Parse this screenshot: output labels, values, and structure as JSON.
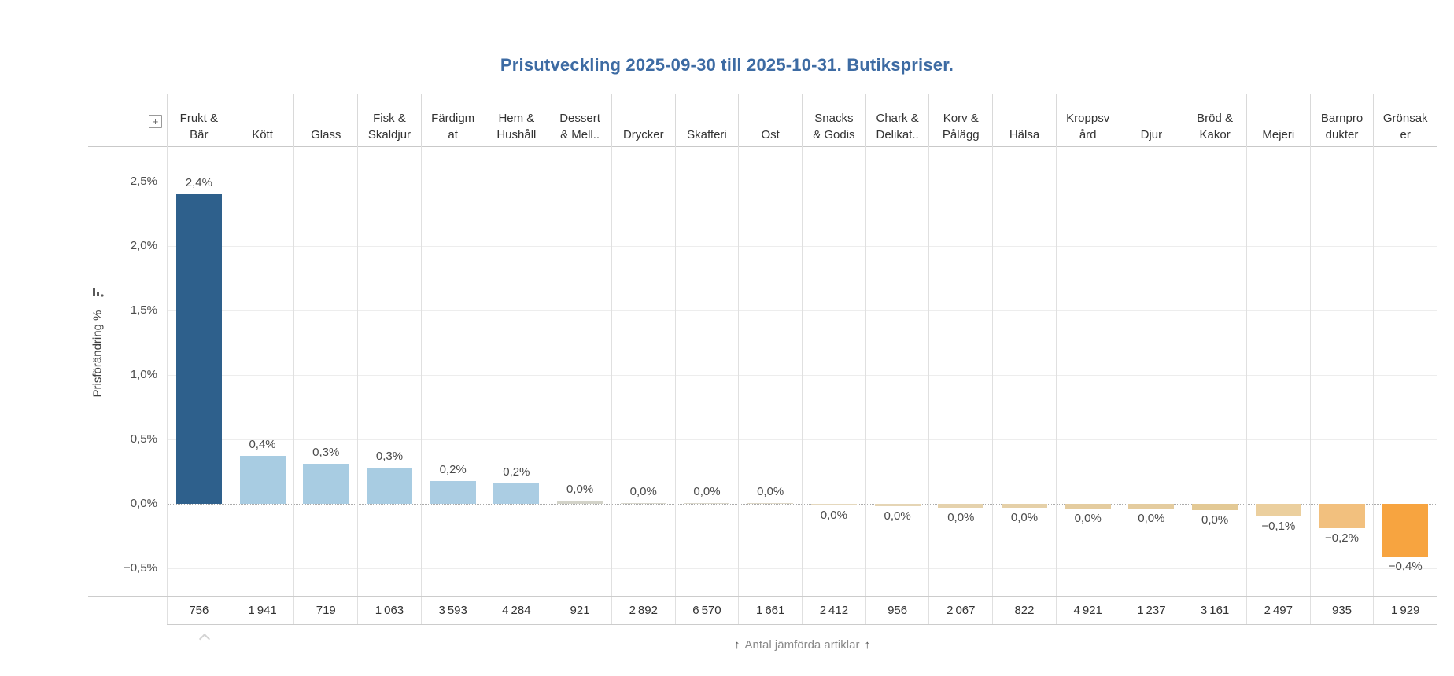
{
  "controls": {
    "expand_icon": "+"
  },
  "chart_data": {
    "type": "bar",
    "title": "Prisutveckling 2025-09-30 till 2025-10-31. Butikspriser.",
    "ylabel": "Prisförändring %",
    "xlabel": "",
    "footer": {
      "arrow": "↑",
      "label": "Antal jämförda artiklar"
    },
    "legend": "none",
    "grid": true,
    "ylim": [
      -0.8,
      2.75
    ],
    "y_axis": {
      "ticks": [
        {
          "label": "2,5%",
          "value": 2.5
        },
        {
          "label": "2,0%",
          "value": 2.0
        },
        {
          "label": "1,5%",
          "value": 1.5
        },
        {
          "label": "1,0%",
          "value": 1.0
        },
        {
          "label": "0,5%",
          "value": 0.5
        },
        {
          "label": "0,0%",
          "value": 0.0
        },
        {
          "label": "−0,5%",
          "value": -0.5
        }
      ]
    },
    "categories": [
      "Frukt & Bär",
      "Kött",
      "Glass",
      "Fisk & Skaldjur",
      "Färdigmat",
      "Hem & Hushåll",
      "Dessert & Mell..",
      "Drycker",
      "Skafferi",
      "Ost",
      "Snacks & Godis",
      "Chark & Delikat..",
      "Korv & Pålägg",
      "Hälsa",
      "Kroppsvård",
      "Djur",
      "Bröd & Kakor",
      "Mejeri",
      "Barnprodukter",
      "Grönsaker"
    ],
    "series": [
      {
        "name": "Prisförändring %",
        "values": [
          2.4,
          0.4,
          0.3,
          0.3,
          0.2,
          0.2,
          0.0,
          0.0,
          0.0,
          0.0,
          0.0,
          0.0,
          0.0,
          0.0,
          0.0,
          0.0,
          0.0,
          -0.1,
          -0.2,
          -0.4
        ]
      },
      {
        "name": "Antal jämförda artiklar",
        "values": [
          756,
          1941,
          719,
          1063,
          3593,
          4284,
          921,
          2892,
          6570,
          1661,
          2412,
          956,
          2067,
          822,
          4921,
          1237,
          3161,
          2497,
          935,
          1929
        ]
      }
    ],
    "columns": [
      {
        "label": "Frukt & Bär",
        "header_lines": [
          "Frukt &",
          "Bär"
        ],
        "value_label": "2,4%",
        "value_est": 2.4,
        "color": "#2e608c",
        "count": "756"
      },
      {
        "label": "Kött",
        "header_lines": [
          "Kött"
        ],
        "value_label": "0,4%",
        "value_est": 0.37,
        "color": "#a8cce2",
        "count": "1 941"
      },
      {
        "label": "Glass",
        "header_lines": [
          "Glass"
        ],
        "value_label": "0,3%",
        "value_est": 0.31,
        "color": "#a8cce2",
        "count": "719"
      },
      {
        "label": "Fisk & Skaldjur",
        "header_lines": [
          "Fisk &",
          "Skaldjur"
        ],
        "value_label": "0,3%",
        "value_est": 0.28,
        "color": "#a8cce2",
        "count": "1 063"
      },
      {
        "label": "Färdigmat",
        "header_lines": [
          "Färdigm",
          "at"
        ],
        "value_label": "0,2%",
        "value_est": 0.175,
        "color": "#abcde3",
        "count": "3 593"
      },
      {
        "label": "Hem & Hushåll",
        "header_lines": [
          "Hem &",
          "Hushåll"
        ],
        "value_label": "0,2%",
        "value_est": 0.16,
        "color": "#abcde3",
        "count": "4 284"
      },
      {
        "label": "Dessert & Mell..",
        "header_lines": [
          "Dessert",
          "& Mell.."
        ],
        "value_label": "0,0%",
        "value_est": 0.022,
        "color": "#d3d3c9",
        "count": "921"
      },
      {
        "label": "Drycker",
        "header_lines": [
          "Drycker"
        ],
        "value_label": "0,0%",
        "value_est": 0.008,
        "color": "#d6d5cb",
        "count": "2 892"
      },
      {
        "label": "Skafferi",
        "header_lines": [
          "Skafferi"
        ],
        "value_label": "0,0%",
        "value_est": 0.007,
        "color": "#d9d6ca",
        "count": "6 570"
      },
      {
        "label": "Ost",
        "header_lines": [
          "Ost"
        ],
        "value_label": "0,0%",
        "value_est": 0.006,
        "color": "#dcd6c6",
        "count": "1 661"
      },
      {
        "label": "Snacks & Godis",
        "header_lines": [
          "Snacks",
          "& Godis"
        ],
        "value_label": "0,0%",
        "value_est": -0.015,
        "color": "#e5d8bd",
        "count": "2 412"
      },
      {
        "label": "Chark & Delikat..",
        "header_lines": [
          "Chark &",
          "Delikat.."
        ],
        "value_label": "0,0%",
        "value_est": -0.02,
        "color": "#e5d5b5",
        "count": "956"
      },
      {
        "label": "Korv & Pålägg",
        "header_lines": [
          "Korv &",
          "Pålägg"
        ],
        "value_label": "0,0%",
        "value_est": -0.028,
        "color": "#e5d2ad",
        "count": "2 067"
      },
      {
        "label": "Hälsa",
        "header_lines": [
          "Hälsa"
        ],
        "value_label": "0,0%",
        "value_est": -0.03,
        "color": "#e5d0a8",
        "count": "822"
      },
      {
        "label": "Kroppsvård",
        "header_lines": [
          "Kroppsv",
          "ård"
        ],
        "value_label": "0,0%",
        "value_est": -0.036,
        "color": "#e4cc9f",
        "count": "4 921"
      },
      {
        "label": "Djur",
        "header_lines": [
          "Djur"
        ],
        "value_label": "0,0%",
        "value_est": -0.036,
        "color": "#e4cc9f",
        "count": "1 237"
      },
      {
        "label": "Bröd & Kakor",
        "header_lines": [
          "Bröd &",
          "Kakor"
        ],
        "value_label": "0,0%",
        "value_est": -0.046,
        "color": "#e3c995",
        "count": "3 161"
      },
      {
        "label": "Mejeri",
        "header_lines": [
          "Mejeri"
        ],
        "value_label": "−0,1%",
        "value_est": -0.1,
        "color": "#ebcf9e",
        "count": "2 497"
      },
      {
        "label": "Barnprodukter",
        "header_lines": [
          "Barnpro",
          "dukter"
        ],
        "value_label": "−0,2%",
        "value_est": -0.19,
        "color": "#f2c07e",
        "count": "935"
      },
      {
        "label": "Grönsaker",
        "header_lines": [
          "Grönsak",
          "er"
        ],
        "value_label": "−0,4%",
        "value_est": -0.41,
        "color": "#f7a440",
        "count": "1 929"
      }
    ]
  }
}
